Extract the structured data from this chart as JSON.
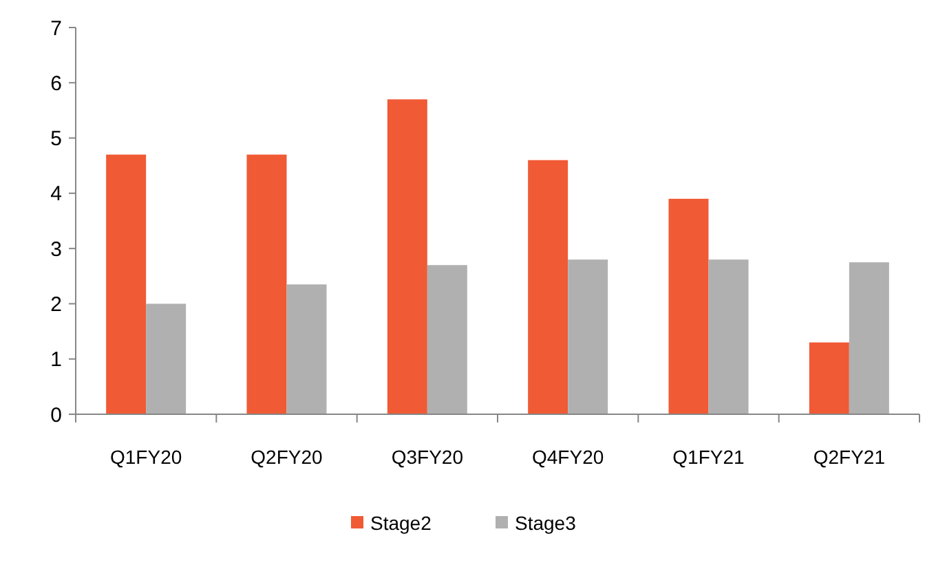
{
  "chart_data": {
    "type": "bar",
    "categories": [
      "Q1FY20",
      "Q2FY20",
      "Q3FY20",
      "Q4FY20",
      "Q1FY21",
      "Q2FY21"
    ],
    "series": [
      {
        "name": "Stage2",
        "color": "#f05a35",
        "values": [
          4.7,
          4.7,
          5.7,
          4.6,
          3.9,
          1.3
        ]
      },
      {
        "name": "Stage3",
        "color": "#b0b0b0",
        "values": [
          2.0,
          2.35,
          2.7,
          2.8,
          2.8,
          2.75
        ]
      }
    ],
    "ylim": [
      0,
      7
    ],
    "yticks": [
      0,
      1,
      2,
      3,
      4,
      5,
      6,
      7
    ],
    "grid": false,
    "legend": "bottom"
  }
}
